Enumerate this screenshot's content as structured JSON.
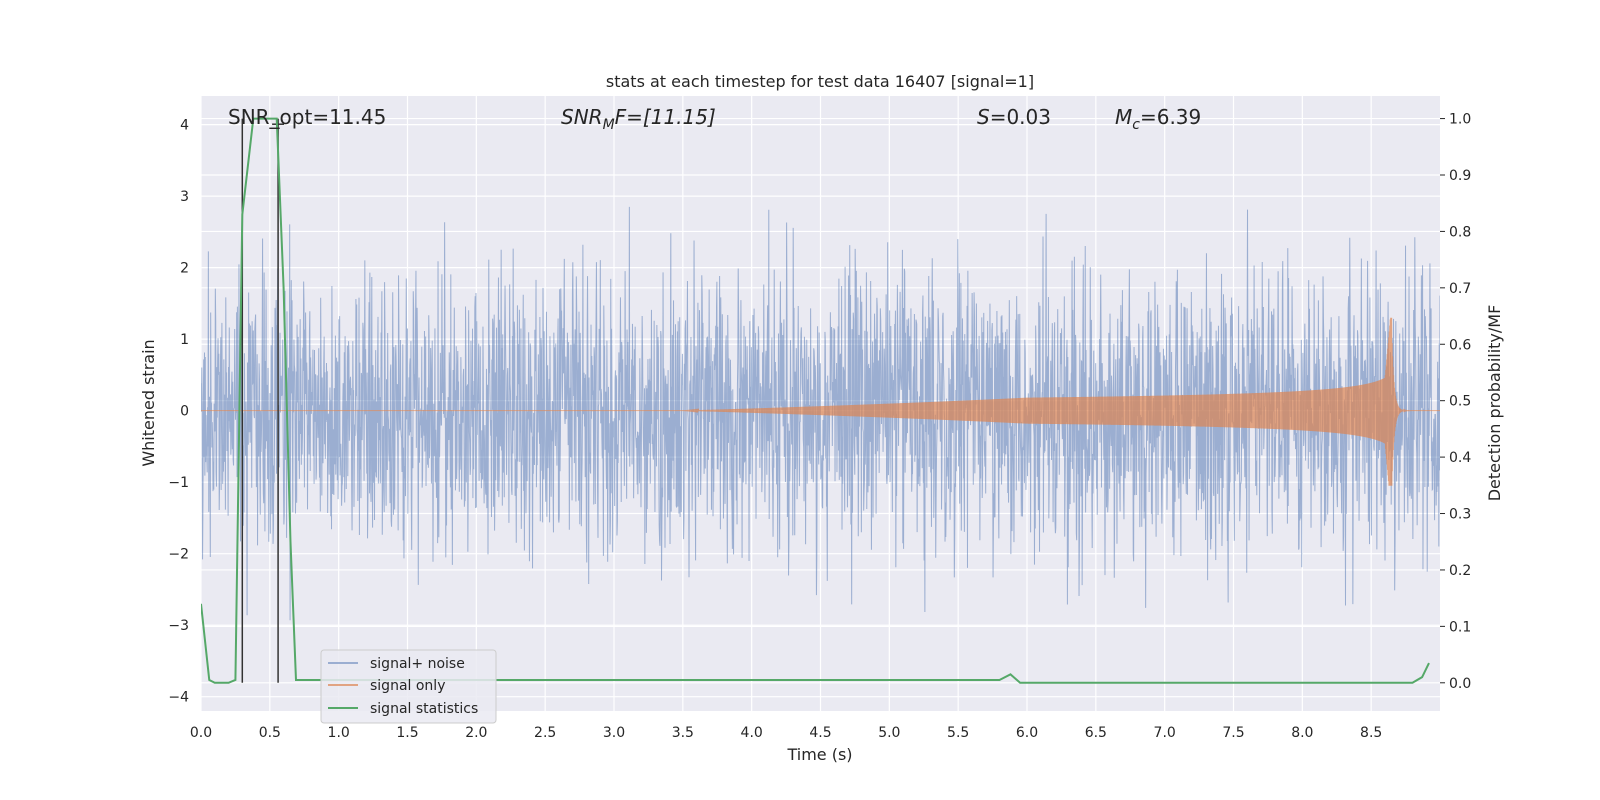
{
  "chart_data": {
    "type": "line",
    "title": "stats at each timestep for test data 16407 [signal=1]",
    "xlabel": "Time (s)",
    "ylabel": "Whitened strain",
    "y2label": "Detection probability/MF",
    "xlim": [
      0,
      9.0
    ],
    "ylim": [
      -4.2,
      4.4
    ],
    "y2lim": [
      -0.05,
      1.04
    ],
    "xticks": [
      0.0,
      0.5,
      1.0,
      1.5,
      2.0,
      2.5,
      3.0,
      3.5,
      4.0,
      4.5,
      5.0,
      5.5,
      6.0,
      6.5,
      7.0,
      7.5,
      8.0,
      8.5
    ],
    "xtick_labels": [
      "0.0",
      "0.5",
      "1.0",
      "1.5",
      "2.0",
      "2.5",
      "3.0",
      "3.5",
      "4.0",
      "4.5",
      "5.0",
      "5.5",
      "6.0",
      "6.5",
      "7.0",
      "7.5",
      "8.0",
      "8.5"
    ],
    "yticks": [
      4,
      3,
      2,
      1,
      0,
      -1,
      -2,
      -3,
      -4
    ],
    "ytick_labels": [
      "4",
      "3",
      "2",
      "1",
      "0",
      "−1",
      "−2",
      "−3",
      "−4"
    ],
    "y2ticks": [
      1.0,
      0.9,
      0.8,
      0.7,
      0.6,
      0.5,
      0.4,
      0.3,
      0.2,
      0.1,
      0.0
    ],
    "y2tick_labels": [
      "1.0",
      "0.9",
      "0.8",
      "0.7",
      "0.6",
      "0.5",
      "0.4",
      "0.3",
      "0.2",
      "0.1",
      "0.0"
    ],
    "grid": true,
    "legend_position": "lower-left",
    "series": [
      {
        "name": "signal+ noise",
        "color": "#4c72b0",
        "kind": "noise",
        "y_range": [
          -4.0,
          4.0
        ]
      },
      {
        "name": "signal only",
        "color": "#dd8452",
        "kind": "chirp",
        "peak_time": 8.65,
        "peak_amplitude": [
          1.3,
          -1.05
        ]
      },
      {
        "name": "signal statistics",
        "color": "#55a868",
        "axis": "right",
        "x": [
          0.0,
          0.06,
          0.1,
          0.2,
          0.25,
          0.3,
          0.38,
          0.45,
          0.55,
          0.6,
          0.65,
          0.69,
          5.8,
          5.88,
          5.95,
          6.0,
          8.8,
          8.87,
          8.92
        ],
        "y": [
          0.14,
          0.005,
          0.0,
          0.0,
          0.005,
          0.83,
          1.0,
          1.0,
          1.0,
          0.7,
          0.25,
          0.005,
          0.005,
          0.015,
          0.0,
          0.0,
          0.0,
          0.01,
          0.035
        ]
      }
    ],
    "vlines": [
      0.3,
      0.56
    ],
    "annotations": {
      "snr_opt": "SNR_opt=11.45",
      "snr_mf_base": "SNR",
      "snr_mf_sub": "M",
      "snr_mf_rest": "F=[11.15]",
      "s_sym": "S",
      "s_val": "=0.03",
      "mc_base": "M",
      "mc_sub": "c",
      "mc_val": "=6.39"
    }
  }
}
